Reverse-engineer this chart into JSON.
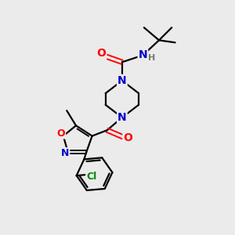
{
  "bg_color": "#ebebeb",
  "atom_colors": {
    "C": "#000000",
    "N": "#0000cc",
    "O": "#ff0000",
    "Cl": "#008800",
    "H": "#777777"
  },
  "bond_color": "#000000",
  "bond_width": 1.6,
  "figsize": [
    3.0,
    3.0
  ],
  "dpi": 100
}
